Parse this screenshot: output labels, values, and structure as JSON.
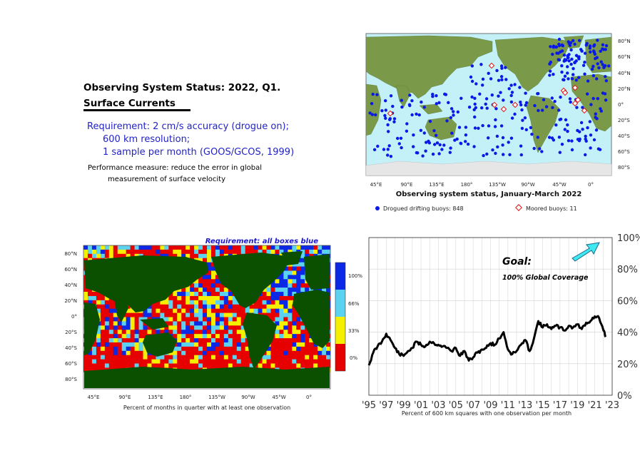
{
  "title": {
    "line1": "Observing System Status:  2022, Q1.",
    "line2": "Surface Currents"
  },
  "requirement": {
    "line1": "Requirement: 2 cm/s accuracy (drogue on);",
    "line2": "600 km resolution;",
    "line3": "1 sample per month (GOOS/GCOS, 1999)"
  },
  "performance": {
    "line1": "Performance measure: reduce the error in global",
    "line2": "measurement of surface velocity"
  },
  "buoy_map": {
    "title": "Observing system status, January-March 2022",
    "lat_labels": [
      "80°N",
      "60°N",
      "40°N",
      "20°N",
      "0°",
      "20°S",
      "40°S",
      "60°S",
      "80°S"
    ],
    "lon_labels": [
      "45°E",
      "90°E",
      "135°E",
      "180°",
      "135°W",
      "90°W",
      "45°W",
      "0°"
    ],
    "legend_drifting": "Drogued drifting buoys: 848",
    "legend_moored": "Moored buoys: 11",
    "drifting_color": "#0a1ae6",
    "moored_color": "#e01010",
    "ocean_color": "#c4f0f8"
  },
  "coverage_map": {
    "title": "Requirement: all boxes blue",
    "caption": "Percent of months in quarter with at least one observation",
    "lat_labels": [
      "80°N",
      "60°N",
      "40°N",
      "20°N",
      "0°",
      "20°S",
      "40°S",
      "60°S",
      "80°S"
    ],
    "lon_labels": [
      "45°E",
      "90°E",
      "135°E",
      "180°",
      "135°W",
      "90°W",
      "45°W",
      "0°"
    ],
    "colorbar_labels": [
      "100%",
      "66%",
      "33%",
      "0%"
    ],
    "colors": {
      "blue": "#0a28e6",
      "cyan": "#5ad2f0",
      "yellow": "#f5f000",
      "red": "#e60000",
      "land": "#0a5000"
    }
  },
  "chart_data": {
    "type": "line",
    "title": "",
    "xlabel": "Percent of 600 km squares with one observation per month",
    "ylabel": "",
    "x_ticks": [
      "'95",
      "'97",
      "'99",
      "'01",
      "'03",
      "'05",
      "'07",
      "'09",
      "'11",
      "'13",
      "'15",
      "'17",
      "'19",
      "'21",
      "'23"
    ],
    "y_ticks": [
      "0%",
      "20%",
      "40%",
      "60%",
      "80%",
      "100%"
    ],
    "xlim": [
      1995,
      2023
    ],
    "ylim": [
      0,
      100
    ],
    "grid": true,
    "annotation_goal": "Goal:",
    "annotation_coverage": "100% Global Coverage",
    "series_color": "#000000",
    "arrow_color": "#40e8f0",
    "x": [
      1995.0,
      1995.5,
      1996.0,
      1996.5,
      1997.0,
      1997.5,
      1998.0,
      1998.5,
      1999.0,
      1999.5,
      2000.0,
      2000.5,
      2001.0,
      2001.5,
      2002.0,
      2002.5,
      2003.0,
      2003.5,
      2004.0,
      2004.5,
      2005.0,
      2005.5,
      2006.0,
      2006.5,
      2007.0,
      2007.5,
      2008.0,
      2008.5,
      2009.0,
      2009.5,
      2010.0,
      2010.5,
      2011.0,
      2011.5,
      2012.0,
      2012.5,
      2013.0,
      2013.5,
      2014.0,
      2014.5,
      2015.0,
      2015.5,
      2016.0,
      2016.5,
      2017.0,
      2017.5,
      2018.0,
      2018.5,
      2019.0,
      2019.5,
      2020.0,
      2020.5,
      2021.0,
      2021.5,
      2022.0,
      2022.25
    ],
    "values": [
      19,
      27,
      31,
      34,
      39,
      35,
      30,
      26,
      25,
      28,
      30,
      34,
      32,
      31,
      34,
      33,
      32,
      31,
      30,
      28,
      30,
      25,
      28,
      22,
      24,
      27,
      29,
      30,
      33,
      32,
      36,
      40,
      29,
      26,
      28,
      32,
      35,
      28,
      36,
      47,
      43,
      45,
      42,
      44,
      43,
      41,
      44,
      43,
      45,
      42,
      46,
      47,
      50,
      49,
      41,
      37
    ]
  }
}
